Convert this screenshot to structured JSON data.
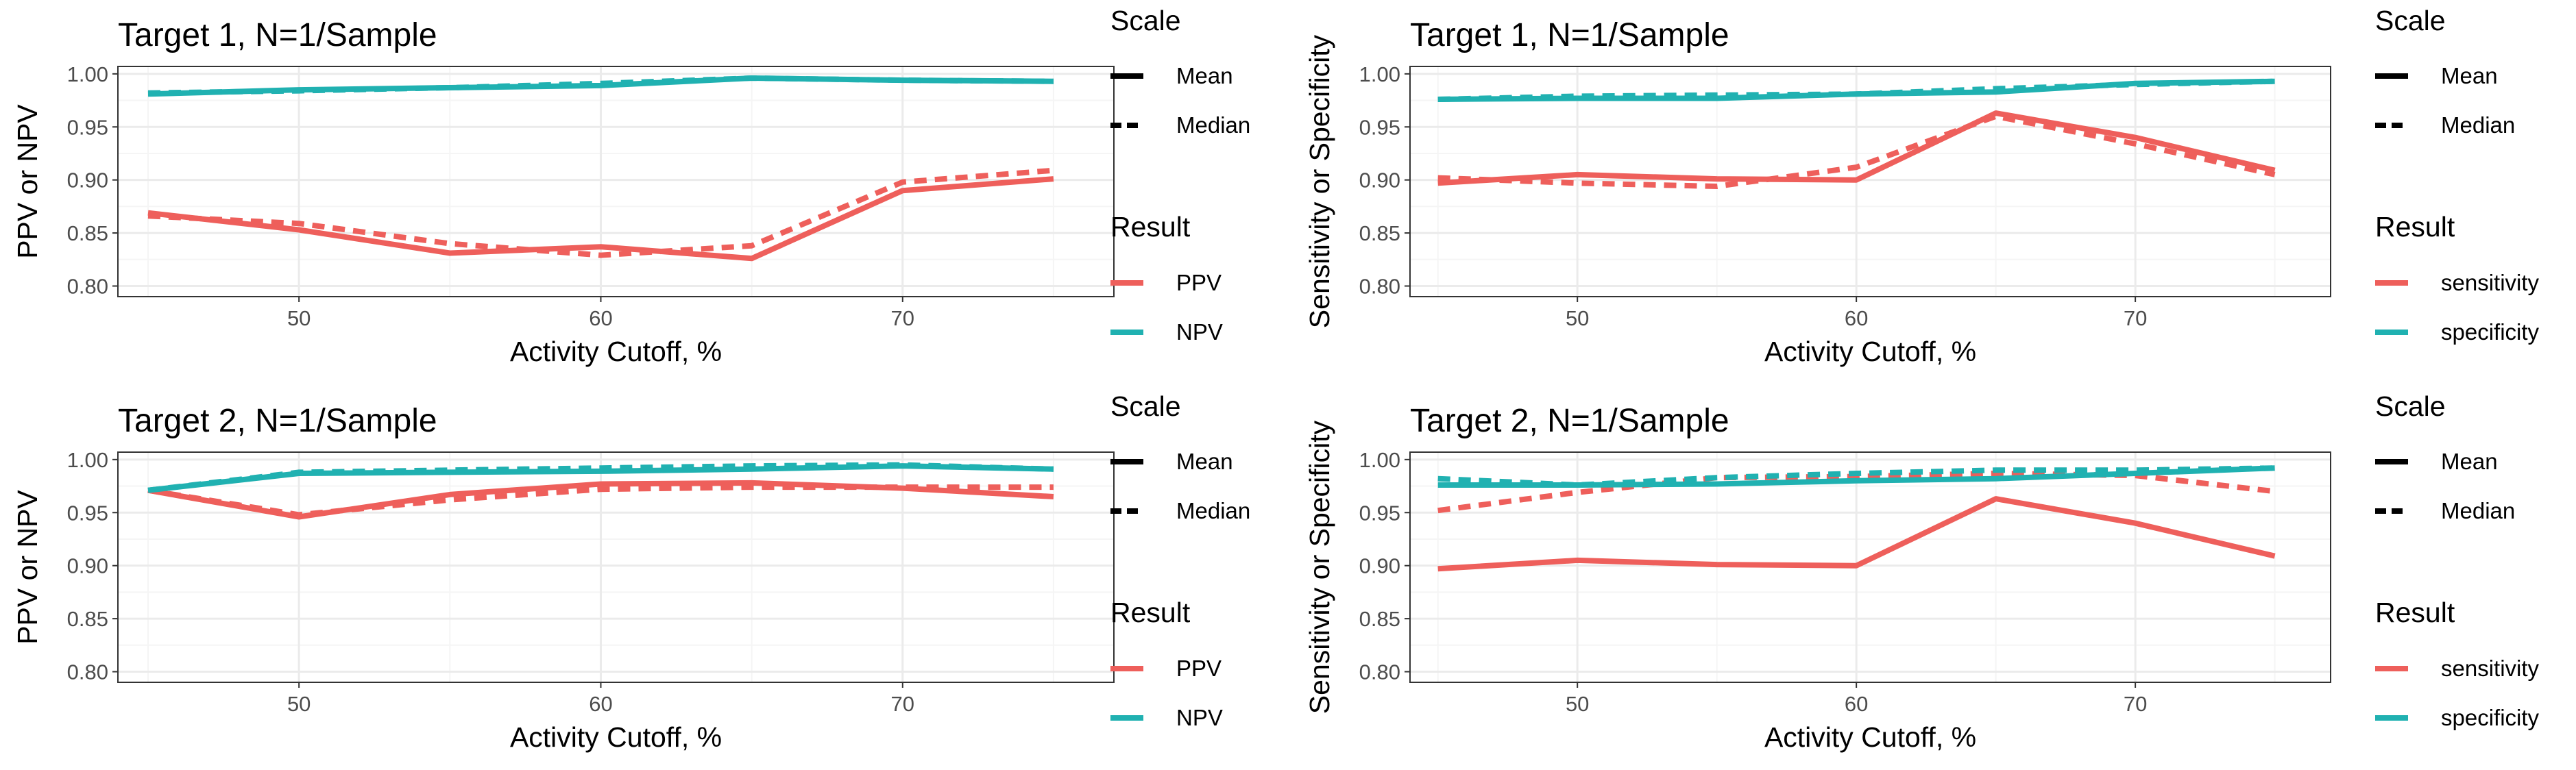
{
  "colors": {
    "red": "#ee5f5b",
    "teal": "#20b1b1",
    "grid_major": "#ebebeb",
    "grid_minor": "#f5f5f5",
    "panel_border": "#333333",
    "tick_text": "#4d4d4d"
  },
  "chart_data": [
    {
      "type": "line",
      "title": "Target 1, N=1/Sample",
      "xlabel": "Activity Cutoff, %",
      "ylabel": "PPV or NPV",
      "xlim": [
        44,
        77
      ],
      "ylim": [
        0.79,
        1.007
      ],
      "x_ticks": [
        50,
        60,
        70
      ],
      "y_ticks": [
        0.8,
        0.85,
        0.9,
        0.95,
        1.0
      ],
      "y_tick_labels": [
        "0.80",
        "0.85",
        "0.90",
        "0.95",
        "1.00"
      ],
      "grid": true,
      "x": [
        45,
        50,
        55,
        60,
        65,
        70,
        75
      ],
      "series": [
        {
          "result": "PPV",
          "scale": "Mean",
          "color": "red",
          "values": [
            0.869,
            0.853,
            0.831,
            0.837,
            0.826,
            0.89,
            0.901
          ]
        },
        {
          "result": "PPV",
          "scale": "Median",
          "color": "red",
          "values": [
            0.866,
            0.859,
            0.84,
            0.829,
            0.838,
            0.898,
            0.909
          ]
        },
        {
          "result": "NPV",
          "scale": "Mean",
          "color": "teal",
          "values": [
            0.981,
            0.985,
            0.987,
            0.989,
            0.996,
            0.994,
            0.993
          ]
        },
        {
          "result": "NPV",
          "scale": "Median",
          "color": "teal",
          "values": [
            0.982,
            0.984,
            0.987,
            0.991,
            0.996,
            0.994,
            0.993
          ]
        }
      ],
      "legend": {
        "position": "right",
        "scale_title": "Scale",
        "scale_items": [
          "Mean",
          "Median"
        ],
        "result_title": "Result",
        "result_items": [
          {
            "label": "PPV",
            "color": "red"
          },
          {
            "label": "NPV",
            "color": "teal"
          }
        ]
      }
    },
    {
      "type": "line",
      "title": "Target 1, N=1/Sample",
      "xlabel": "Activity Cutoff, %",
      "ylabel": "Sensitivity or Specificity",
      "xlim": [
        44,
        77
      ],
      "ylim": [
        0.79,
        1.007
      ],
      "x_ticks": [
        50,
        60,
        70
      ],
      "y_ticks": [
        0.8,
        0.85,
        0.9,
        0.95,
        1.0
      ],
      "y_tick_labels": [
        "0.80",
        "0.85",
        "0.90",
        "0.95",
        "1.00"
      ],
      "grid": true,
      "x": [
        45,
        50,
        55,
        60,
        65,
        70,
        75
      ],
      "series": [
        {
          "result": "sensitivity",
          "scale": "Mean",
          "color": "red",
          "values": [
            0.897,
            0.905,
            0.901,
            0.9,
            0.963,
            0.94,
            0.909
          ]
        },
        {
          "result": "sensitivity",
          "scale": "Median",
          "color": "red",
          "values": [
            0.902,
            0.897,
            0.894,
            0.912,
            0.96,
            0.934,
            0.905
          ]
        },
        {
          "result": "specificity",
          "scale": "Mean",
          "color": "teal",
          "values": [
            0.976,
            0.977,
            0.977,
            0.981,
            0.983,
            0.991,
            0.993
          ]
        },
        {
          "result": "specificity",
          "scale": "Median",
          "color": "teal",
          "values": [
            0.976,
            0.979,
            0.98,
            0.981,
            0.986,
            0.99,
            0.993
          ]
        }
      ],
      "legend": {
        "position": "right",
        "scale_title": "Scale",
        "scale_items": [
          "Mean",
          "Median"
        ],
        "result_title": "Result",
        "result_items": [
          {
            "label": "sensitivity",
            "color": "red"
          },
          {
            "label": "specificity",
            "color": "teal"
          }
        ]
      }
    },
    {
      "type": "line",
      "title": "Target 2, N=1/Sample",
      "xlabel": "Activity Cutoff, %",
      "ylabel": "PPV or NPV",
      "xlim": [
        44,
        77
      ],
      "ylim": [
        0.79,
        1.007
      ],
      "x_ticks": [
        50,
        60,
        70
      ],
      "y_ticks": [
        0.8,
        0.85,
        0.9,
        0.95,
        1.0
      ],
      "y_tick_labels": [
        "0.80",
        "0.85",
        "0.90",
        "0.95",
        "1.00"
      ],
      "grid": true,
      "x": [
        45,
        50,
        55,
        60,
        65,
        70,
        75
      ],
      "series": [
        {
          "result": "PPV",
          "scale": "Mean",
          "color": "red",
          "values": [
            0.971,
            0.946,
            0.967,
            0.977,
            0.978,
            0.973,
            0.965
          ]
        },
        {
          "result": "PPV",
          "scale": "Median",
          "color": "red",
          "values": [
            0.971,
            0.948,
            0.962,
            0.972,
            0.974,
            0.974,
            0.974
          ]
        },
        {
          "result": "NPV",
          "scale": "Mean",
          "color": "teal",
          "values": [
            0.971,
            0.987,
            0.988,
            0.989,
            0.991,
            0.994,
            0.991
          ]
        },
        {
          "result": "NPV",
          "scale": "Median",
          "color": "teal",
          "values": [
            0.971,
            0.988,
            0.99,
            0.992,
            0.994,
            0.995,
            0.991
          ]
        }
      ],
      "legend": {
        "position": "right",
        "scale_title": "Scale",
        "scale_items": [
          "Mean",
          "Median"
        ],
        "result_title": "Result",
        "result_items": [
          {
            "label": "PPV",
            "color": "red"
          },
          {
            "label": "NPV",
            "color": "teal"
          }
        ]
      }
    },
    {
      "type": "line",
      "title": "Target 2, N=1/Sample",
      "xlabel": "Activity Cutoff, %",
      "ylabel": "Sensitivity or Specificity",
      "xlim": [
        44,
        77
      ],
      "ylim": [
        0.79,
        1.007
      ],
      "x_ticks": [
        50,
        60,
        70
      ],
      "y_ticks": [
        0.8,
        0.85,
        0.9,
        0.95,
        1.0
      ],
      "y_tick_labels": [
        "0.80",
        "0.85",
        "0.90",
        "0.95",
        "1.00"
      ],
      "grid": true,
      "x": [
        45,
        50,
        55,
        60,
        65,
        70,
        75
      ],
      "series": [
        {
          "result": "sensitivity",
          "scale": "Mean",
          "color": "red",
          "values": [
            0.897,
            0.905,
            0.901,
            0.9,
            0.963,
            0.94,
            0.909
          ]
        },
        {
          "result": "sensitivity",
          "scale": "Median",
          "color": "red",
          "values": [
            0.952,
            0.969,
            0.983,
            0.984,
            0.987,
            0.985,
            0.97
          ]
        },
        {
          "result": "specificity",
          "scale": "Mean",
          "color": "teal",
          "values": [
            0.976,
            0.976,
            0.977,
            0.98,
            0.982,
            0.987,
            0.992
          ]
        },
        {
          "result": "specificity",
          "scale": "Median",
          "color": "teal",
          "values": [
            0.982,
            0.976,
            0.983,
            0.987,
            0.99,
            0.99,
            0.992
          ]
        }
      ],
      "legend": {
        "position": "right",
        "scale_title": "Scale",
        "scale_items": [
          "Mean",
          "Median"
        ],
        "result_title": "Result",
        "result_items": [
          {
            "label": "sensitivity",
            "color": "red"
          },
          {
            "label": "specificity",
            "color": "teal"
          }
        ]
      }
    }
  ]
}
